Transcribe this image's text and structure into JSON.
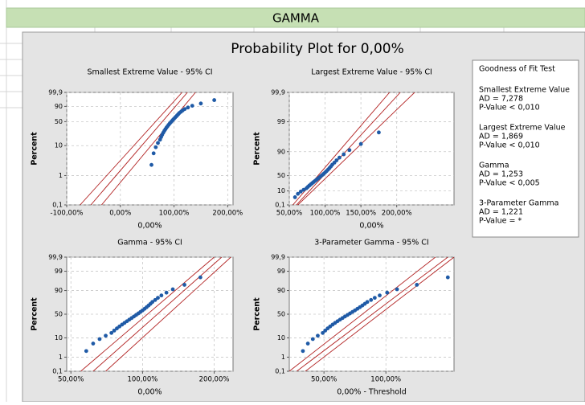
{
  "header": {
    "sheet_title": "GAMMA"
  },
  "figure_title": "Probability Plot for 0,00%",
  "goodness_of_fit": {
    "title": "Goodness of Fit Test",
    "entries": [
      {
        "name": "Smallest Extreme Value",
        "ad": "AD = 7,278",
        "p_value": "P-Value < 0,010"
      },
      {
        "name": "Largest Extreme Value",
        "ad": "AD = 1,869",
        "p_value": "P-Value < 0,010"
      },
      {
        "name": "Gamma",
        "ad": "AD = 1,253",
        "p_value": "P-Value < 0,005"
      },
      {
        "name": "3-Parameter Gamma",
        "ad": "AD = 1,221",
        "p_value": "P-Value = *"
      }
    ]
  },
  "chart_data": [
    {
      "type": "scatter",
      "title": "Smallest Extreme Value - 95% CI",
      "x_label": "0,00%",
      "y_label": "Percent",
      "yscale": "sev",
      "xscale": "linear",
      "grid": true,
      "color": "#1f5aa6",
      "line_color": "#b22222",
      "xlim": [
        -100,
        210
      ],
      "ylim": [
        0.1,
        99.9
      ],
      "xticks": [
        {
          "value": -100,
          "label": "-100,00%"
        },
        {
          "value": 0,
          "label": "0,00%"
        },
        {
          "value": 100,
          "label": "100,00%"
        },
        {
          "value": 200,
          "label": "200,00%"
        }
      ],
      "yticks": [
        {
          "value": 0.1,
          "label": "0,1"
        },
        1,
        10,
        50,
        90,
        {
          "value": 99.9,
          "label": "99,9"
        }
      ],
      "x": [
        58,
        62,
        66,
        70,
        74,
        76,
        78,
        80,
        82,
        84,
        86,
        88,
        90,
        92,
        94,
        96,
        98,
        100,
        102,
        104,
        106,
        108,
        110,
        113,
        116,
        120,
        126,
        134,
        150,
        175
      ],
      "y": [
        2.3,
        5.59,
        8.88,
        12.17,
        15.46,
        18.75,
        22.04,
        25.33,
        28.62,
        31.91,
        35.2,
        38.49,
        41.78,
        45.07,
        48.36,
        51.64,
        54.93,
        58.22,
        61.51,
        64.8,
        68.09,
        71.38,
        74.67,
        77.96,
        81.25,
        84.54,
        87.83,
        91.12,
        94.41,
        97.7
      ],
      "lines": [
        {
          "x": [
            -75,
            115
          ],
          "y": [
            0.1,
            99.9
          ]
        },
        {
          "x": [
            -55,
            125
          ],
          "y": [
            0.1,
            99.9
          ]
        },
        {
          "x": [
            -35,
            140
          ],
          "y": [
            0.1,
            99.9
          ]
        }
      ]
    },
    {
      "type": "scatter",
      "title": "Largest Extreme Value - 95% CI",
      "x_label": "0,00%",
      "y_label": "Percent",
      "yscale": "lev",
      "xscale": "linear",
      "grid": true,
      "color": "#1f5aa6",
      "line_color": "#b22222",
      "xlim": [
        50,
        280
      ],
      "ylim": [
        0.1,
        99.9
      ],
      "xticks": [
        {
          "value": 50,
          "label": "50,00%"
        },
        {
          "value": 100,
          "label": "100,00%"
        },
        {
          "value": 150,
          "label": "150,00%"
        },
        {
          "value": 200,
          "label": "200,00%"
        }
      ],
      "yticks": [
        {
          "value": 0.1,
          "label": "0,1"
        },
        10,
        50,
        90,
        99,
        {
          "value": 99.9,
          "label": "99,9"
        }
      ],
      "x": [
        58,
        62,
        66,
        70,
        74,
        76,
        78,
        80,
        82,
        84,
        86,
        88,
        90,
        92,
        94,
        96,
        98,
        100,
        102,
        104,
        106,
        108,
        110,
        113,
        116,
        120,
        126,
        134,
        150,
        175
      ],
      "y": [
        2.3,
        5.59,
        8.88,
        12.17,
        15.46,
        18.75,
        22.04,
        25.33,
        28.62,
        31.91,
        35.2,
        38.49,
        41.78,
        45.07,
        48.36,
        51.64,
        54.93,
        58.22,
        61.51,
        64.8,
        68.09,
        71.38,
        74.67,
        77.96,
        81.25,
        84.54,
        87.83,
        91.12,
        94.41,
        97.7
      ],
      "lines": [
        {
          "x": [
            55,
            190
          ],
          "y": [
            0.1,
            99.9
          ]
        },
        {
          "x": [
            60,
            205
          ],
          "y": [
            0.1,
            99.9
          ]
        },
        {
          "x": [
            62,
            225
          ],
          "y": [
            0.1,
            99.9
          ]
        }
      ]
    },
    {
      "type": "scatter",
      "title": "Gamma - 95% CI",
      "x_label": "0,00%",
      "y_label": "Percent",
      "yscale": "gamma",
      "xscale": "log",
      "grid": true,
      "color": "#1f5aa6",
      "line_color": "#b22222",
      "xlim": [
        48,
        240
      ],
      "ylim": [
        0.1,
        99.9
      ],
      "xticks": [
        {
          "value": 50,
          "label": "50,00%"
        },
        {
          "value": 100,
          "label": "100,00%"
        },
        {
          "value": 200,
          "label": "200,00%"
        }
      ],
      "yticks": [
        {
          "value": 0.1,
          "label": "0,1"
        },
        1,
        10,
        50,
        90,
        99,
        {
          "value": 99.9,
          "label": "99,9"
        }
      ],
      "x": [
        58,
        62,
        66,
        70,
        74,
        76,
        78,
        80,
        82,
        84,
        86,
        88,
        90,
        92,
        94,
        96,
        98,
        100,
        102,
        104,
        106,
        108,
        110,
        113,
        116,
        120,
        126,
        134,
        150,
        175
      ],
      "y": [
        2.3,
        5.59,
        8.88,
        12.17,
        15.46,
        18.75,
        22.04,
        25.33,
        28.62,
        31.91,
        35.2,
        38.49,
        41.78,
        45.07,
        48.36,
        51.64,
        54.93,
        58.22,
        61.51,
        64.8,
        68.09,
        71.38,
        74.67,
        77.96,
        81.25,
        84.54,
        87.83,
        91.12,
        94.41,
        97.7
      ],
      "lines": [
        {
          "x": [
            55,
            200
          ],
          "y": [
            0.1,
            99.9
          ]
        },
        {
          "x": [
            62,
            215
          ],
          "y": [
            0.1,
            99.9
          ]
        },
        {
          "x": [
            70,
            235
          ],
          "y": [
            0.1,
            99.9
          ]
        }
      ]
    },
    {
      "type": "scatter",
      "title": "3-Parameter Gamma - 95% CI",
      "x_label": "0,00% - Threshold",
      "y_label": "Percent",
      "yscale": "gamma",
      "xscale": "linear",
      "grid": true,
      "color": "#1f5aa6",
      "line_color": "#b22222",
      "xlim": [
        22,
        155
      ],
      "ylim": [
        0.1,
        99.9
      ],
      "xticks": [
        {
          "value": 50,
          "label": "50,00%"
        },
        {
          "value": 100,
          "label": "100,00%"
        }
      ],
      "yticks": [
        {
          "value": 0.1,
          "label": "0,1"
        },
        1,
        10,
        50,
        90,
        99,
        {
          "value": 99.9,
          "label": "99,9"
        }
      ],
      "x": [
        33,
        37,
        41,
        45,
        49,
        51,
        53,
        55,
        57,
        59,
        61,
        63,
        65,
        67,
        69,
        71,
        73,
        75,
        77,
        79,
        81,
        83,
        85,
        88,
        91,
        95,
        101,
        109,
        125,
        150
      ],
      "y": [
        2.3,
        5.59,
        8.88,
        12.17,
        15.46,
        18.75,
        22.04,
        25.33,
        28.62,
        31.91,
        35.2,
        38.49,
        41.78,
        45.07,
        48.36,
        51.64,
        54.93,
        58.22,
        61.51,
        64.8,
        68.09,
        71.38,
        74.67,
        77.96,
        81.25,
        84.54,
        87.83,
        91.12,
        94.41,
        97.7
      ],
      "lines": [
        {
          "x": [
            22,
            140
          ],
          "y": [
            0.1,
            99.9
          ]
        },
        {
          "x": [
            28,
            150
          ],
          "y": [
            0.1,
            99.9
          ]
        },
        {
          "x": [
            35,
            155
          ],
          "y": [
            0.1,
            99.9
          ]
        }
      ]
    }
  ]
}
